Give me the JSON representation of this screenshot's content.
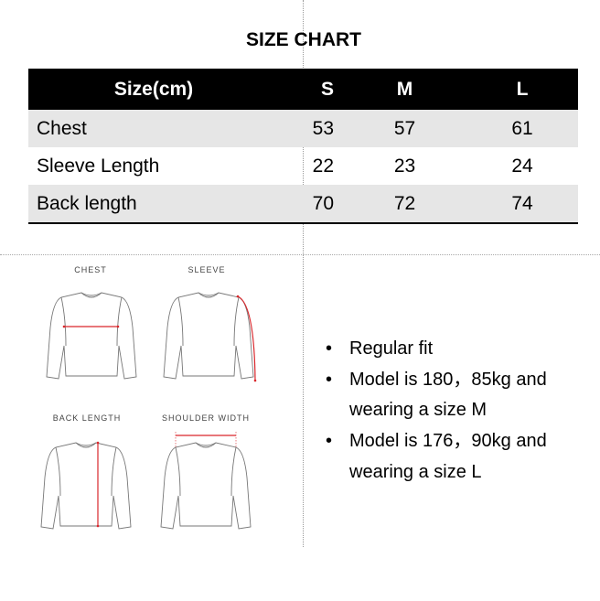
{
  "title": "SIZE CHART",
  "table": {
    "headers": [
      "Size(cm)",
      "S",
      "M",
      "L"
    ],
    "rows": [
      {
        "label": "Chest",
        "values": [
          "53",
          "57",
          "61"
        ]
      },
      {
        "label": "Sleeve Length",
        "values": [
          "22",
          "23",
          "24"
        ]
      },
      {
        "label": "Back length",
        "values": [
          "70",
          "72",
          "74"
        ]
      }
    ]
  },
  "diagrams": {
    "chest": "CHEST",
    "sleeve": "SLEEVE",
    "back_length": "BACK LENGTH",
    "shoulder_width": "SHOULDER WIDTH",
    "measure_color": "#d9262b"
  },
  "notes": [
    {
      "bullet": "•",
      "text": "Regular fit"
    },
    {
      "bullet": "•",
      "text": "Model is 180，85kg and wearing a size M"
    },
    {
      "bullet": "•",
      "text": "Model is 176，90kg and wearing a size L"
    }
  ]
}
